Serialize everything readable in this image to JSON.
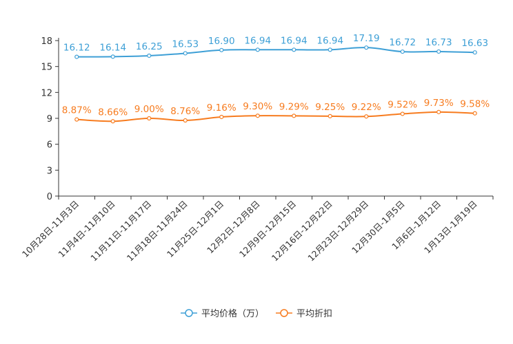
{
  "chart_data": {
    "type": "line",
    "title": "",
    "xlabel": "",
    "ylabel": "",
    "ylim": [
      0,
      18
    ],
    "yticks": [
      0,
      3,
      6,
      9,
      12,
      15,
      18
    ],
    "grid": false,
    "legend_position": "bottom-center",
    "categories": [
      "10月28日-11月3日",
      "11月4日-11月10日",
      "11月11日-11月17日",
      "11月18日-11月24日",
      "11月25日-12月1日",
      "12月2日-12月8日",
      "12月9日-12月15日",
      "12月16日-12月22日",
      "12月23日-12月29日",
      "12月30日-1月5日",
      "1月6日-1月12日",
      "1月13日-1月19日"
    ],
    "series": [
      {
        "name": "平均价格（万）",
        "color": "#3d9fd6",
        "values": [
          16.12,
          16.14,
          16.25,
          16.53,
          16.9,
          16.94,
          16.94,
          16.94,
          17.19,
          16.72,
          16.73,
          16.63
        ],
        "labels": [
          "16.12",
          "16.14",
          "16.25",
          "16.53",
          "16.90",
          "16.94",
          "16.94",
          "16.94",
          "17.19",
          "16.72",
          "16.73",
          "16.63"
        ]
      },
      {
        "name": "平均折扣",
        "color": "#f77b1e",
        "values": [
          8.87,
          8.66,
          9.0,
          8.76,
          9.16,
          9.3,
          9.29,
          9.25,
          9.22,
          9.52,
          9.73,
          9.58
        ],
        "labels": [
          "8.87%",
          "8.66%",
          "9.00%",
          "8.76%",
          "9.16%",
          "9.30%",
          "9.29%",
          "9.25%",
          "9.22%",
          "9.52%",
          "9.73%",
          "9.58%"
        ]
      }
    ]
  }
}
